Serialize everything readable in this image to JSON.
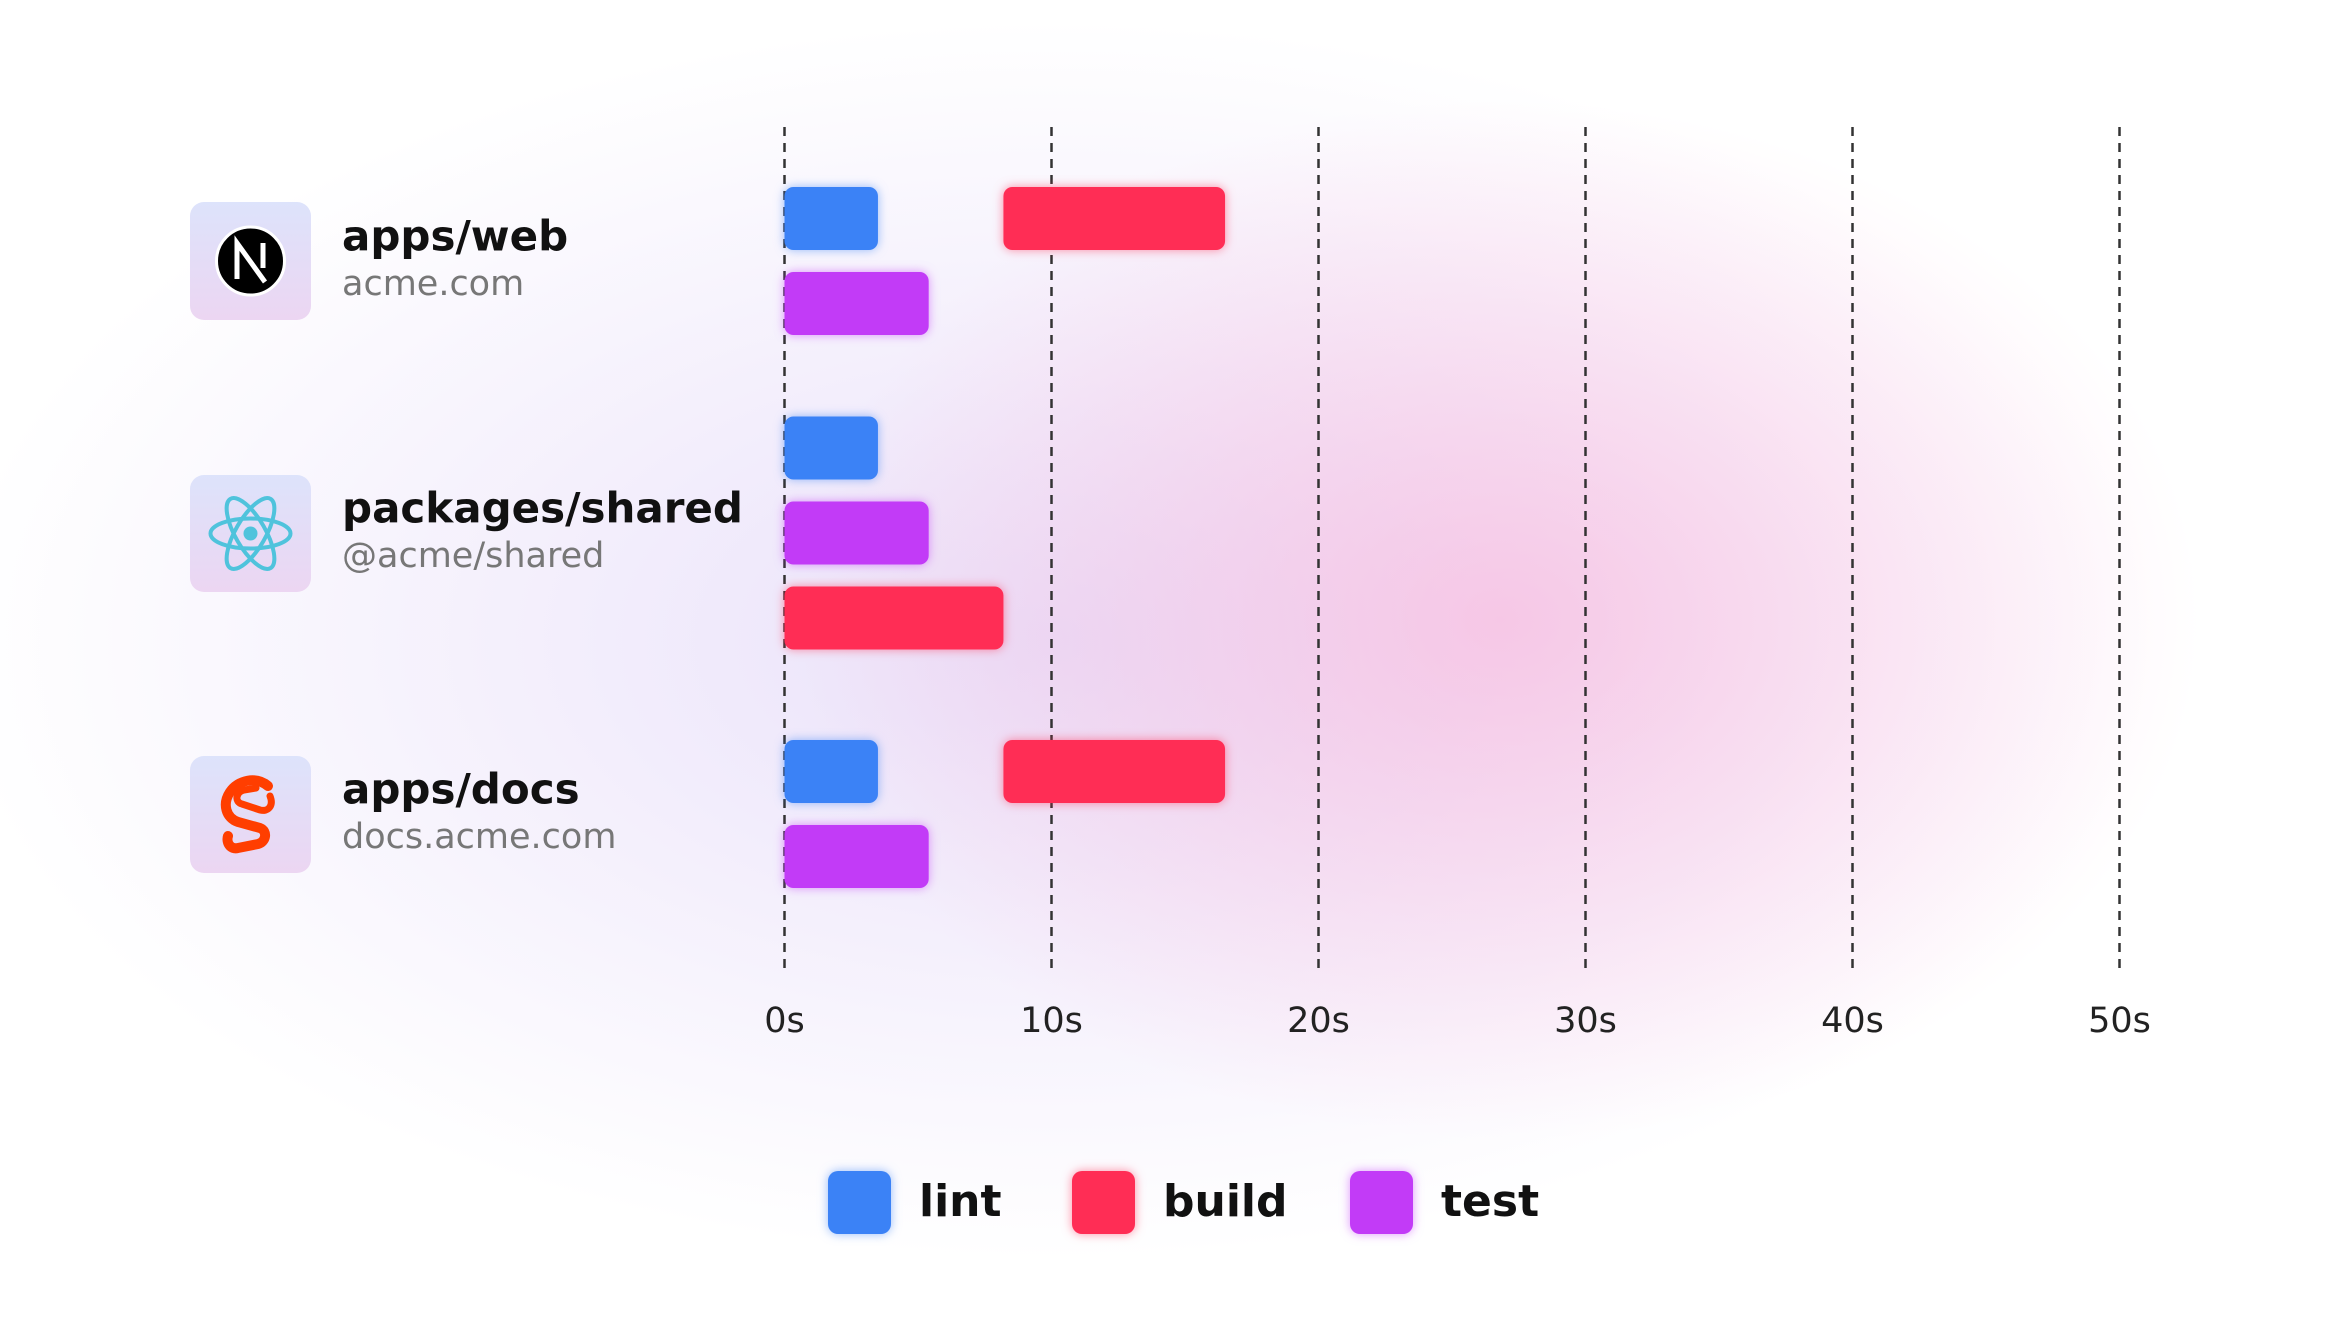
{
  "chart_data": {
    "type": "timeline",
    "categories": [
      "apps/web",
      "packages/shared",
      "apps/docs"
    ],
    "subtitles": [
      "acme.com",
      "@acme/shared",
      "docs.acme.com"
    ],
    "series": [
      {
        "name": "lint",
        "color": "#3b82f6",
        "start": [
          0,
          0,
          0
        ],
        "end": [
          3.5,
          3.5,
          3.5
        ]
      },
      {
        "name": "build",
        "color": "#ff2d55",
        "start": [
          8.2,
          0,
          8.2
        ],
        "end": [
          16.5,
          8.2,
          16.5
        ]
      },
      {
        "name": "test",
        "color": "#c23bf7",
        "start": [
          0,
          0,
          0
        ],
        "end": [
          5.4,
          5.4,
          5.4
        ]
      }
    ],
    "xlim": [
      0,
      50
    ],
    "xticks": [
      {
        "value": 0,
        "label": "0s"
      },
      {
        "value": 10,
        "label": "10s"
      },
      {
        "value": 20,
        "label": "20s"
      },
      {
        "value": 30,
        "label": "30s"
      },
      {
        "value": 40,
        "label": "40s"
      },
      {
        "value": 50,
        "label": "50s"
      }
    ],
    "grid": true
  }
}
